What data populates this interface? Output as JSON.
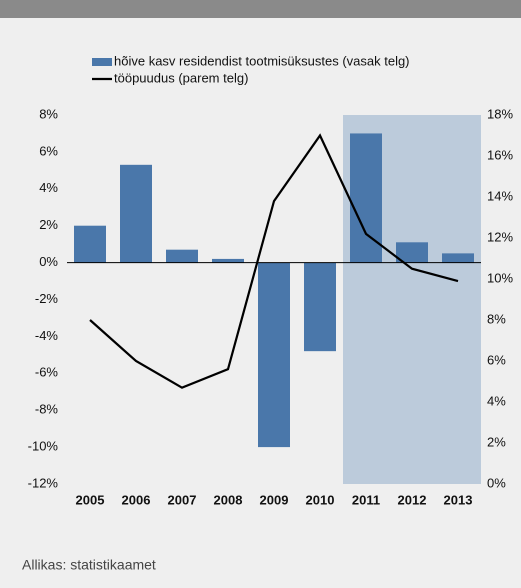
{
  "chart_data": {
    "type": "bar",
    "categories": [
      "2005",
      "2006",
      "2007",
      "2008",
      "2009",
      "2010",
      "2011",
      "2012",
      "2013"
    ],
    "series": [
      {
        "name": "hõive kasv residendist tootmisüksustes (vasak telg)",
        "type": "bar",
        "color": "#4a77aa",
        "values": [
          2.0,
          5.3,
          0.7,
          0.2,
          -10.0,
          -4.8,
          7.0,
          1.1,
          0.5
        ]
      },
      {
        "name": "tööpuudus (parem telg)",
        "type": "line",
        "axis": "y2",
        "color": "#000000",
        "values": [
          8.0,
          6.0,
          4.7,
          5.6,
          13.8,
          17.0,
          12.2,
          10.5,
          9.9
        ]
      }
    ],
    "ylim": [
      -12,
      8
    ],
    "yticks": [
      {
        "value": -12,
        "label": "-12%"
      },
      {
        "value": -10,
        "label": "-10%"
      },
      {
        "value": -8,
        "label": "-8%"
      },
      {
        "value": -6,
        "label": "-6%"
      },
      {
        "value": -4,
        "label": "-4%"
      },
      {
        "value": -2,
        "label": "-2%"
      },
      {
        "value": 0,
        "label": "0%"
      },
      {
        "value": 2,
        "label": "2%"
      },
      {
        "value": 4,
        "label": "4%"
      },
      {
        "value": 6,
        "label": "6%"
      },
      {
        "value": 8,
        "label": "8%"
      }
    ],
    "y2lim": [
      0,
      18
    ],
    "y2ticks": [
      {
        "value": 0,
        "label": "0%"
      },
      {
        "value": 2,
        "label": "2%"
      },
      {
        "value": 4,
        "label": "4%"
      },
      {
        "value": 6,
        "label": "6%"
      },
      {
        "value": 8,
        "label": "8%"
      },
      {
        "value": 10,
        "label": "10%"
      },
      {
        "value": 12,
        "label": "12%"
      },
      {
        "value": 14,
        "label": "14%"
      },
      {
        "value": 16,
        "label": "16%"
      },
      {
        "value": 18,
        "label": "18%"
      }
    ],
    "highlight_start": "2011",
    "highlight_color": "#bccbdb",
    "source": "Allikas: statistikaamet"
  }
}
